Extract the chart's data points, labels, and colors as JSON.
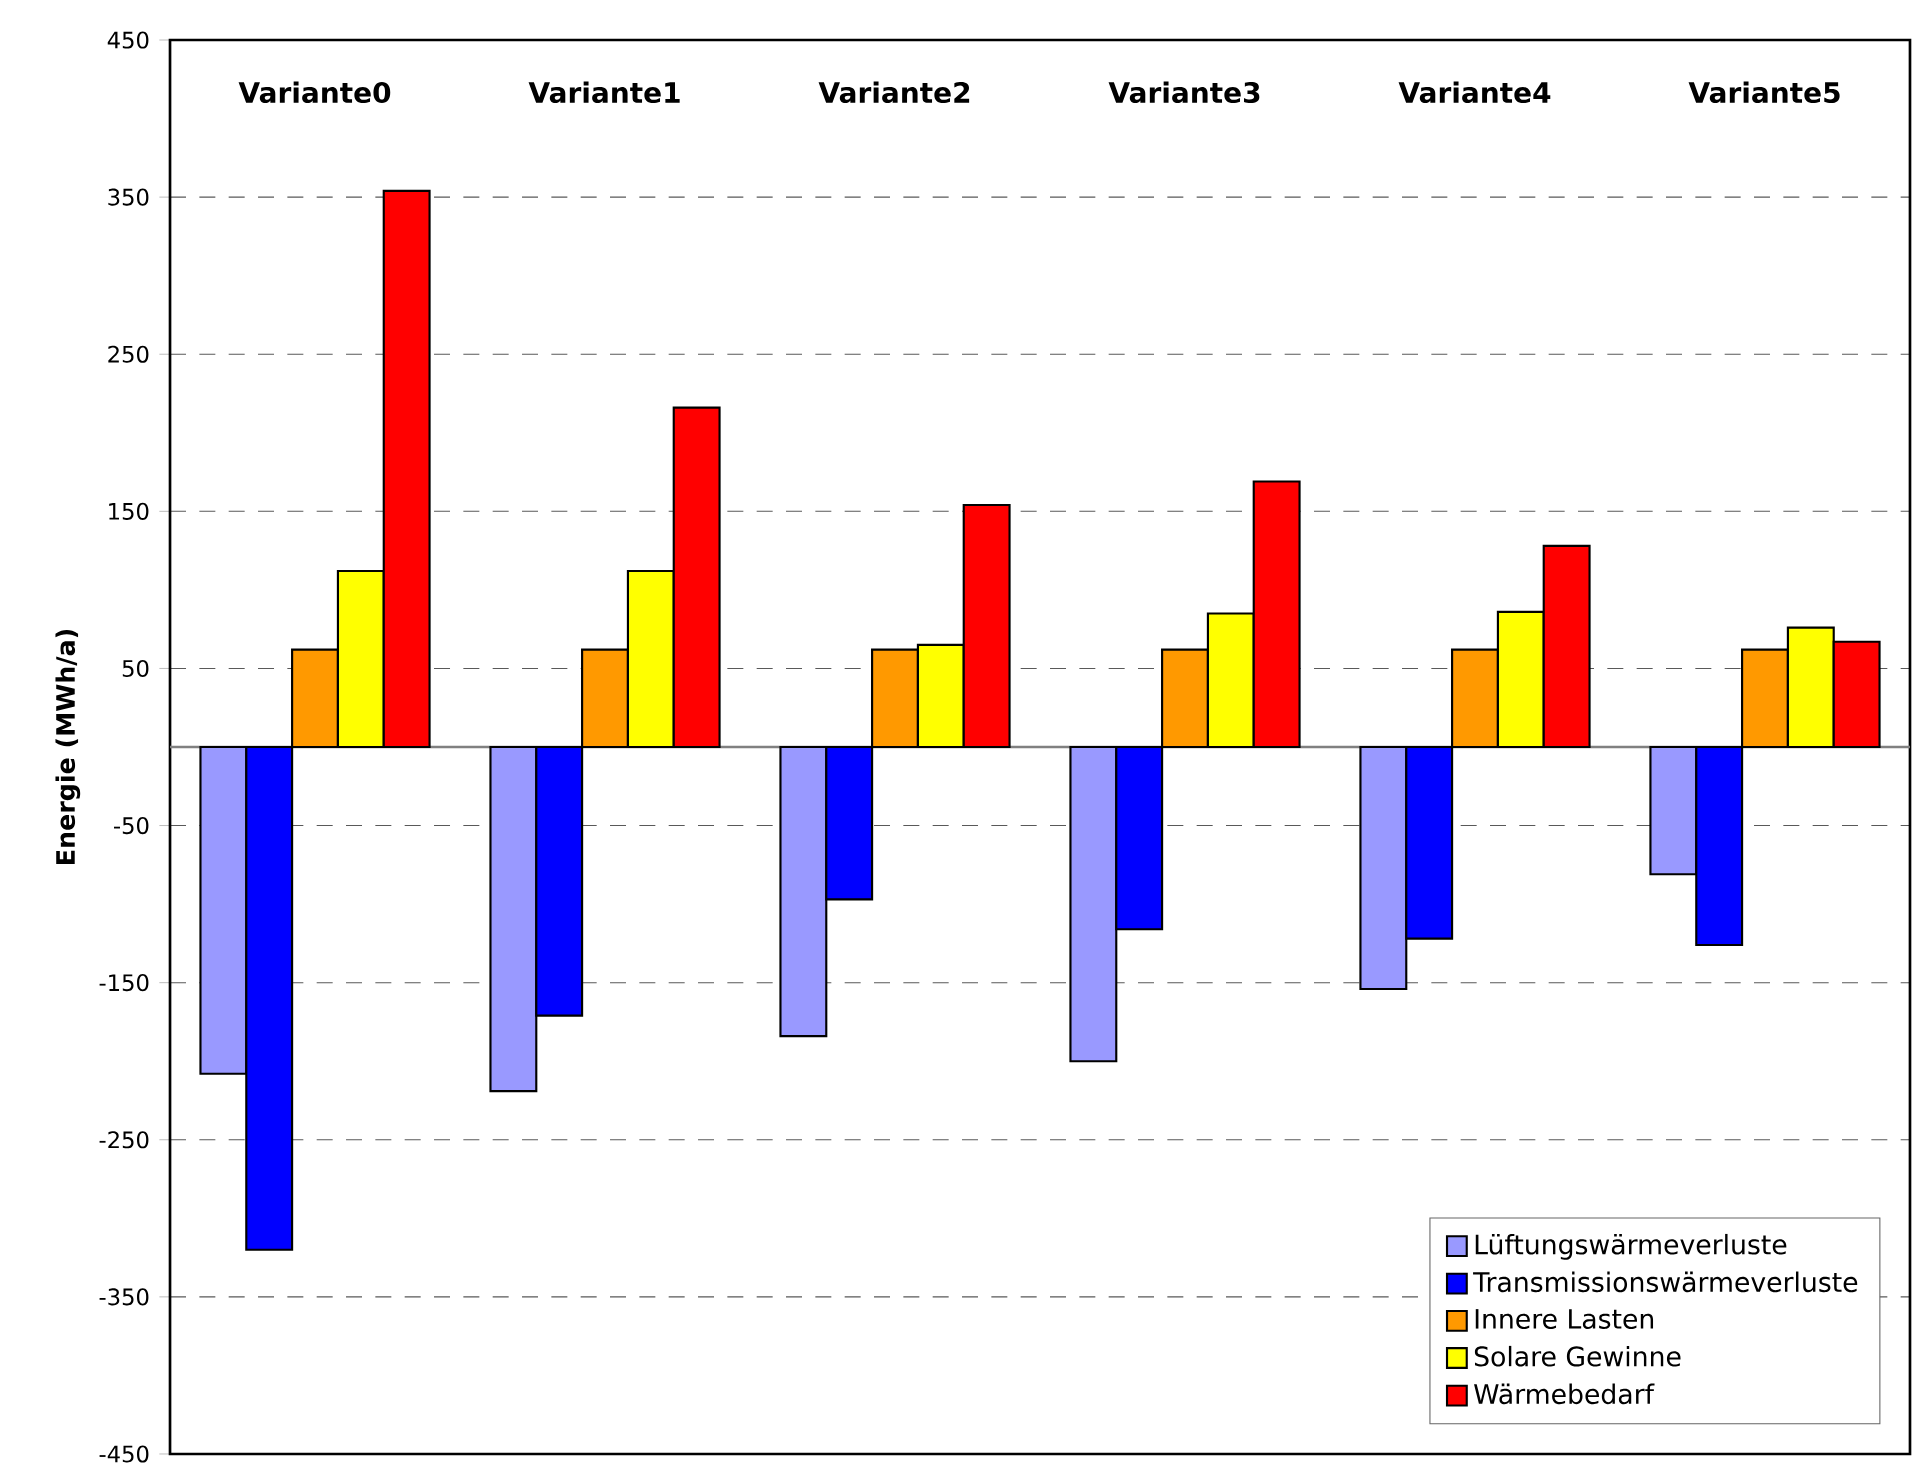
{
  "chart_data": {
    "type": "bar",
    "ylabel": "Energie (MWh/a)",
    "categories": [
      "Variante0",
      "Variante1",
      "Variante2",
      "Variante3",
      "Variante4",
      "Variante5"
    ],
    "series": [
      {
        "name": "Lüftungswärmeverluste",
        "color": "#9999ff",
        "values": [
          -208,
          -219,
          -184,
          -200,
          -154,
          -81
        ]
      },
      {
        "name": "Transmissionswärmeverluste",
        "color": "#0000ff",
        "values": [
          -320,
          -171,
          -97,
          -116,
          -122,
          -126
        ]
      },
      {
        "name": "Innere Lasten",
        "color": "#ff9900",
        "values": [
          62,
          62,
          62,
          62,
          62,
          62
        ]
      },
      {
        "name": "Solare Gewinne",
        "color": "#ffff00",
        "values": [
          112,
          112,
          65,
          85,
          86,
          76
        ]
      },
      {
        "name": "Wärmebedarf",
        "color": "#ff0000",
        "values": [
          354,
          216,
          154,
          169,
          128,
          67
        ]
      }
    ],
    "ylim": [
      -450,
      450
    ],
    "yticks": [
      -450,
      -350,
      -250,
      -150,
      -50,
      50,
      150,
      250,
      350,
      450
    ],
    "grid": "y",
    "legend": "bottom right"
  }
}
